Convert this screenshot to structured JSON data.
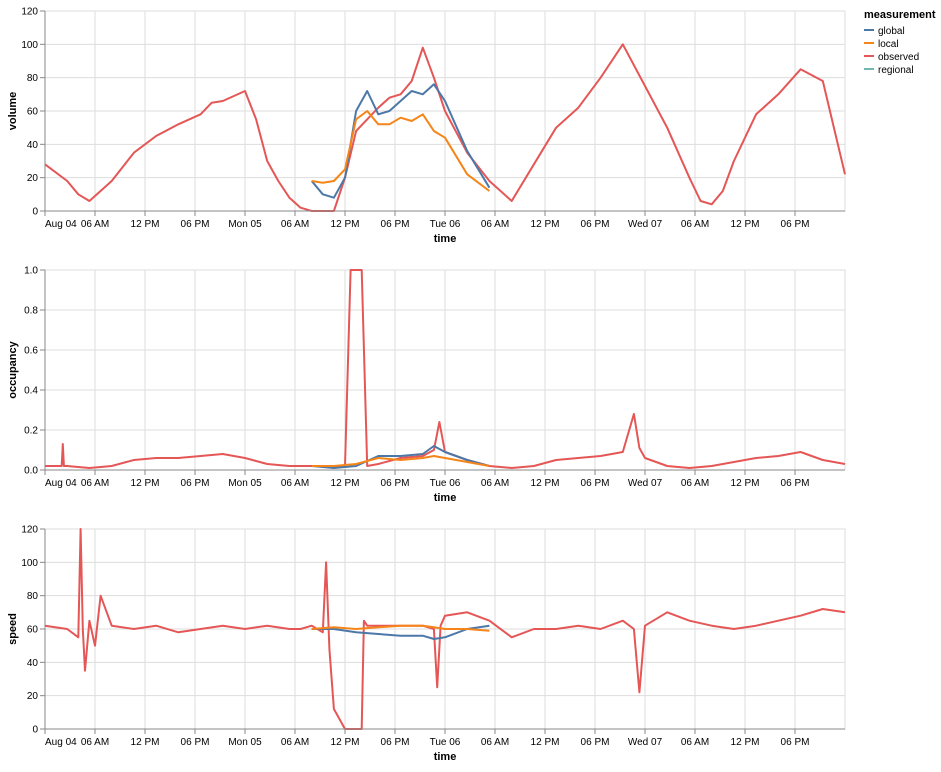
{
  "legend": {
    "title": "measurement",
    "items": [
      {
        "label": "global",
        "color": "#4c78a8"
      },
      {
        "label": "local",
        "color": "#f58518"
      },
      {
        "label": "observed",
        "color": "#e45756"
      },
      {
        "label": "regional",
        "color": "#72b7b2"
      }
    ]
  },
  "x_axis": {
    "title": "time",
    "tick_labels": [
      "Aug 04",
      "06 AM",
      "12 PM",
      "06 PM",
      "Mon 05",
      "06 AM",
      "12 PM",
      "06 PM",
      "Tue 06",
      "06 AM",
      "12 PM",
      "06 PM",
      "Wed 07",
      "06 AM",
      "12 PM",
      "06 PM"
    ],
    "range_hours": [
      0,
      72
    ]
  },
  "chart_data": [
    {
      "type": "line",
      "ylabel": "volume",
      "xlabel": "time",
      "ylim": [
        0,
        120
      ],
      "yticks": [
        0,
        20,
        40,
        60,
        80,
        100,
        120
      ],
      "grid": true,
      "series": [
        {
          "name": "observed",
          "x": [
            0,
            2,
            3,
            4,
            6,
            8,
            10,
            12,
            14,
            15,
            16,
            18,
            19,
            20,
            21,
            22,
            23,
            24,
            25,
            26,
            27,
            28,
            30,
            31,
            32,
            33,
            34,
            35,
            36,
            38,
            40,
            42,
            44,
            46,
            48,
            50,
            52,
            54,
            56,
            58,
            59,
            60,
            61,
            62,
            64,
            66,
            68,
            70,
            72
          ],
          "y": [
            28,
            18,
            10,
            6,
            18,
            35,
            45,
            52,
            58,
            65,
            66,
            72,
            55,
            30,
            18,
            8,
            2,
            0,
            0,
            0,
            20,
            48,
            62,
            68,
            70,
            78,
            98,
            80,
            60,
            35,
            18,
            6,
            28,
            50,
            62,
            80,
            100,
            75,
            50,
            20,
            6,
            4,
            12,
            30,
            58,
            70,
            85,
            78,
            22
          ]
        },
        {
          "name": "global",
          "x": [
            24,
            25,
            26,
            27,
            28,
            29,
            30,
            31,
            32,
            33,
            34,
            35,
            36,
            38,
            40
          ],
          "y": [
            18,
            10,
            8,
            20,
            60,
            72,
            58,
            60,
            66,
            72,
            70,
            76,
            66,
            36,
            14
          ]
        },
        {
          "name": "local",
          "x": [
            24,
            25,
            26,
            27,
            28,
            29,
            30,
            31,
            32,
            33,
            34,
            35,
            36,
            38,
            40
          ],
          "y": [
            18,
            17,
            18,
            25,
            55,
            60,
            52,
            52,
            56,
            54,
            58,
            48,
            44,
            22,
            12
          ]
        }
      ]
    },
    {
      "type": "line",
      "ylabel": "occupancy",
      "xlabel": "time",
      "ylim": [
        0,
        1
      ],
      "yticks": [
        0.0,
        0.2,
        0.4,
        0.6,
        0.8,
        1.0
      ],
      "grid": true,
      "series": [
        {
          "name": "observed",
          "x": [
            0,
            1.5,
            1.6,
            1.7,
            2,
            4,
            6,
            8,
            10,
            12,
            14,
            16,
            18,
            20,
            22,
            24,
            26,
            27,
            27.5,
            28,
            28.5,
            29,
            30,
            32,
            34,
            35,
            35.5,
            36,
            38,
            40,
            42,
            44,
            46,
            48,
            50,
            52,
            53,
            53.5,
            54,
            56,
            58,
            60,
            62,
            64,
            66,
            68,
            70,
            72
          ],
          "y": [
            0.02,
            0.02,
            0.13,
            0.02,
            0.02,
            0.01,
            0.02,
            0.05,
            0.06,
            0.06,
            0.07,
            0.08,
            0.06,
            0.03,
            0.02,
            0.02,
            0.02,
            0.02,
            1.0,
            1.0,
            1.0,
            0.02,
            0.03,
            0.06,
            0.07,
            0.1,
            0.24,
            0.09,
            0.05,
            0.02,
            0.01,
            0.02,
            0.05,
            0.06,
            0.07,
            0.09,
            0.28,
            0.11,
            0.06,
            0.02,
            0.01,
            0.02,
            0.04,
            0.06,
            0.07,
            0.09,
            0.05,
            0.03
          ]
        },
        {
          "name": "global",
          "x": [
            24,
            26,
            28,
            30,
            32,
            34,
            35,
            36,
            38,
            40
          ],
          "y": [
            0.02,
            0.01,
            0.02,
            0.07,
            0.07,
            0.08,
            0.12,
            0.09,
            0.05,
            0.02
          ]
        },
        {
          "name": "local",
          "x": [
            24,
            26,
            28,
            30,
            32,
            34,
            35,
            36,
            38,
            40
          ],
          "y": [
            0.02,
            0.02,
            0.03,
            0.06,
            0.05,
            0.06,
            0.07,
            0.06,
            0.04,
            0.02
          ]
        }
      ]
    },
    {
      "type": "line",
      "ylabel": "speed",
      "xlabel": "time",
      "ylim": [
        0,
        120
      ],
      "yticks": [
        0,
        20,
        40,
        60,
        80,
        100,
        120
      ],
      "grid": true,
      "series": [
        {
          "name": "observed",
          "x": [
            0,
            2,
            3,
            3.2,
            3.4,
            3.6,
            4,
            4.5,
            5,
            6,
            8,
            10,
            12,
            14,
            16,
            18,
            20,
            22,
            23,
            24,
            25,
            25.3,
            25.6,
            26,
            27,
            27.5,
            28,
            28.5,
            28.7,
            29,
            30,
            32,
            34,
            35,
            35.3,
            35.6,
            36,
            38,
            40,
            42,
            44,
            46,
            48,
            50,
            52,
            53,
            53.5,
            54,
            56,
            58,
            60,
            62,
            64,
            66,
            68,
            70,
            72
          ],
          "y": [
            62,
            60,
            55,
            120,
            60,
            35,
            65,
            50,
            80,
            62,
            60,
            62,
            58,
            60,
            62,
            60,
            62,
            60,
            60,
            62,
            58,
            100,
            48,
            12,
            0,
            0,
            0,
            0,
            65,
            62,
            62,
            62,
            62,
            60,
            25,
            62,
            68,
            70,
            65,
            55,
            60,
            60,
            62,
            60,
            65,
            60,
            22,
            62,
            70,
            65,
            62,
            60,
            62,
            65,
            68,
            72,
            70
          ]
        },
        {
          "name": "global",
          "x": [
            24,
            26,
            28,
            30,
            32,
            34,
            35,
            36,
            38,
            40
          ],
          "y": [
            60,
            60,
            58,
            57,
            56,
            56,
            54,
            55,
            60,
            62
          ]
        },
        {
          "name": "local",
          "x": [
            24,
            26,
            28,
            30,
            32,
            34,
            35,
            36,
            38,
            40
          ],
          "y": [
            60,
            61,
            60,
            61,
            62,
            62,
            61,
            60,
            60,
            59
          ]
        }
      ]
    }
  ]
}
